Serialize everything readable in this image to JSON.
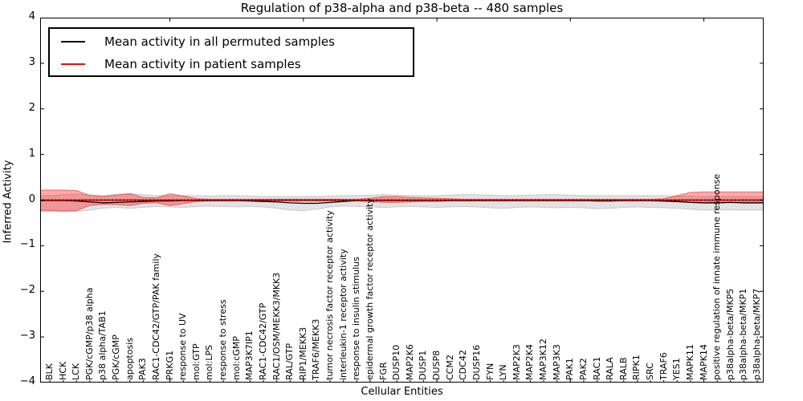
{
  "title": "Regulation of p38-alpha and p38-beta -- 480 samples",
  "axes": {
    "ylabel": "Inferred Activity",
    "xlabel": "Cellular Entities",
    "y_tick_labels": [
      "4",
      "3",
      "2",
      "1",
      "0",
      "−1",
      "−2",
      "−3",
      "−4"
    ]
  },
  "chart_data": {
    "type": "line",
    "title": "Regulation of p38-alpha and p38-beta -- 480 samples",
    "xlabel": "Cellular Entities",
    "ylabel": "Inferred Activity",
    "ylim": [
      -4,
      4
    ],
    "grid": false,
    "legend_position": "upper left",
    "x_major_ticks": [
      10,
      20,
      30,
      40,
      50
    ],
    "categories": [
      "BLK",
      "HCK",
      "LCK",
      "PGK/cGMP/p38 alpha",
      "p38 alpha/TAB1",
      "PGK/cGMP",
      "apoptosis",
      "PAK3",
      "RAC1-CDC42/GTP/PAK family",
      "PRKG1",
      "response to UV",
      "mol:GTP",
      "mol:LPS",
      "response to stress",
      "mol:cGMP",
      "MAP3K7IP1",
      "RAC1-CDC42/GTP",
      "RAC1/OSM/MEKK3/MKK3",
      "RAL/GTP",
      "RIP1/MEKK3",
      "TRAF6/MEKK3",
      "tumor necrosis factor receptor activity",
      "interleukin-1 receptor activity",
      "response to insulin stimulus",
      "epidermal growth factor receptor activity",
      "FGR",
      "DUSP10",
      "MAP2K6",
      "DUSP1",
      "DUSP8",
      "CCM2",
      "CDC42",
      "DUSP16",
      "FYN",
      "LYN",
      "MAP2K3",
      "MAP2K4",
      "MAP3K12",
      "MAP3K3",
      "PAK1",
      "PAK2",
      "RAC1",
      "RALA",
      "RALB",
      "RIPK1",
      "SRC",
      "TRAF6",
      "YES1",
      "MAPK11",
      "MAPK14",
      "positive regulation of innate immune response",
      "p38alpha-beta/MKP5",
      "p38alpha-beta/MKP1",
      "p38alpha-beta/MKP7"
    ],
    "series": [
      {
        "name": "Mean activity in all permuted samples",
        "color": "#000000",
        "line_width": 1.3,
        "values": [
          -0.01,
          -0.01,
          -0.02,
          -0.04,
          -0.06,
          -0.05,
          -0.04,
          -0.03,
          -0.02,
          -0.02,
          -0.01,
          -0.01,
          -0.01,
          -0.01,
          -0.01,
          -0.02,
          -0.03,
          -0.04,
          -0.06,
          -0.07,
          -0.07,
          -0.05,
          -0.03,
          -0.01,
          -0.01,
          -0.01,
          -0.01,
          -0.01,
          -0.01,
          -0.01,
          -0.01,
          -0.01,
          -0.01,
          -0.01,
          -0.01,
          -0.01,
          -0.01,
          -0.01,
          -0.01,
          -0.01,
          -0.01,
          -0.02,
          -0.02,
          -0.01,
          -0.01,
          -0.01,
          -0.02,
          -0.03,
          -0.05,
          -0.06,
          -0.06,
          -0.05,
          -0.06,
          -0.06
        ]
      },
      {
        "name": "Mean activity in patient samples",
        "color": "#ff0000",
        "line_width": 1.8,
        "values": [
          0,
          0,
          0,
          0,
          0,
          0,
          0,
          0,
          0,
          0,
          0,
          0,
          0,
          0,
          0,
          0,
          0,
          0,
          0,
          0,
          0,
          0,
          0,
          0,
          0,
          0,
          0,
          0,
          0,
          0,
          0,
          0,
          0,
          0,
          0,
          0,
          0,
          0,
          0,
          0,
          0,
          0,
          0,
          0,
          0,
          0,
          0,
          0,
          0,
          0,
          0,
          0,
          0,
          0
        ]
      }
    ],
    "bands": [
      {
        "name": "permuted samples confidence band",
        "fill": "rgba(0,0,0,0.11)",
        "edge": "rgba(0,0,0,0.16)",
        "upper": [
          0.1,
          0.12,
          0.13,
          0.12,
          0.1,
          0.13,
          0.14,
          0.12,
          0.1,
          0.1,
          0.1,
          0.1,
          0.09,
          0.1,
          0.1,
          0.09,
          0.08,
          0.08,
          0.08,
          0.08,
          0.08,
          0.09,
          0.1,
          0.1,
          0.11,
          0.12,
          0.11,
          0.1,
          0.1,
          0.1,
          0.11,
          0.12,
          0.12,
          0.11,
          0.1,
          0.1,
          0.11,
          0.12,
          0.12,
          0.11,
          0.1,
          0.1,
          0.1,
          0.1,
          0.1,
          0.1,
          0.1,
          0.09,
          0.09,
          0.08,
          0.08,
          0.08,
          0.08,
          0.08
        ],
        "lower": [
          -0.22,
          -0.25,
          -0.25,
          -0.22,
          -0.18,
          -0.16,
          -0.18,
          -0.16,
          -0.14,
          -0.15,
          -0.16,
          -0.14,
          -0.13,
          -0.14,
          -0.15,
          -0.14,
          -0.15,
          -0.18,
          -0.22,
          -0.23,
          -0.2,
          -0.15,
          -0.13,
          -0.14,
          -0.15,
          -0.16,
          -0.15,
          -0.14,
          -0.15,
          -0.16,
          -0.15,
          -0.14,
          -0.15,
          -0.17,
          -0.18,
          -0.16,
          -0.15,
          -0.16,
          -0.17,
          -0.16,
          -0.17,
          -0.19,
          -0.18,
          -0.16,
          -0.15,
          -0.16,
          -0.17,
          -0.18,
          -0.2,
          -0.22,
          -0.22,
          -0.21,
          -0.22,
          -0.22
        ]
      },
      {
        "name": "patient samples confidence band",
        "fill": "rgba(255,0,0,0.33)",
        "edge": "rgba(220,30,30,0.55)",
        "upper": [
          0.22,
          0.22,
          0.21,
          0.1,
          0.08,
          0.11,
          0.14,
          0.06,
          0.05,
          0.14,
          0.09,
          0.03,
          0.02,
          0.02,
          0.02,
          0.02,
          0.02,
          0.02,
          0.02,
          0.02,
          0.02,
          0.02,
          0.02,
          0.02,
          0.04,
          0.08,
          0.08,
          0.06,
          0.05,
          0.04,
          0.03,
          0.02,
          0.02,
          0.02,
          0.02,
          0.02,
          0.02,
          0.02,
          0.02,
          0.02,
          0.02,
          0.02,
          0.02,
          0.02,
          0.02,
          0.02,
          0.03,
          0.1,
          0.17,
          0.18,
          0.18,
          0.18,
          0.18,
          0.18
        ],
        "lower": [
          -0.24,
          -0.24,
          -0.23,
          -0.12,
          -0.09,
          -0.1,
          -0.12,
          -0.07,
          -0.06,
          -0.12,
          -0.08,
          -0.03,
          -0.02,
          -0.02,
          -0.02,
          -0.02,
          -0.02,
          -0.02,
          -0.02,
          -0.02,
          -0.02,
          -0.02,
          -0.02,
          -0.02,
          -0.03,
          -0.05,
          -0.05,
          -0.04,
          -0.03,
          -0.03,
          -0.02,
          -0.02,
          -0.02,
          -0.02,
          -0.02,
          -0.02,
          -0.02,
          -0.02,
          -0.02,
          -0.02,
          -0.02,
          -0.02,
          -0.02,
          -0.02,
          -0.02,
          -0.02,
          -0.03,
          -0.04,
          -0.05,
          -0.05,
          -0.05,
          -0.05,
          -0.05,
          -0.05
        ]
      }
    ],
    "zero_line": {
      "value": 0,
      "style": "dotted",
      "color": "#000000"
    }
  }
}
